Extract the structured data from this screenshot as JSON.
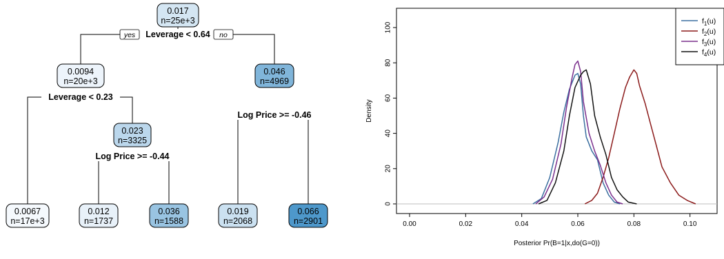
{
  "chart_data": [
    {
      "type": "tree",
      "nodes": [
        {
          "id": "root",
          "value": "0.017",
          "n": "n=25e+3",
          "shade": 0.2
        },
        {
          "id": "left",
          "value": "0.0094",
          "n": "n=20e+3",
          "shade": 0.05
        },
        {
          "id": "right",
          "value": "0.046",
          "n": "n=4969",
          "shade": 0.7
        },
        {
          "id": "leaf1",
          "value": "0.0067",
          "n": "n=17e+3",
          "shade": 0.0
        },
        {
          "id": "mid",
          "value": "0.023",
          "n": "n=3325",
          "shade": 0.35
        },
        {
          "id": "leaf2",
          "value": "0.012",
          "n": "n=1737",
          "shade": 0.08
        },
        {
          "id": "leaf3",
          "value": "0.036",
          "n": "n=1588",
          "shade": 0.55
        },
        {
          "id": "leaf4",
          "value": "0.019",
          "n": "n=2068",
          "shade": 0.25
        },
        {
          "id": "leaf5",
          "value": "0.066",
          "n": "n=2901",
          "shade": 1.0
        }
      ],
      "splits": [
        {
          "id": "s-root",
          "label": "Leverage < 0.64",
          "yes": "yes",
          "no": "no"
        },
        {
          "id": "s-left",
          "label": "Leverage < 0.23"
        },
        {
          "id": "s-right",
          "label": "Log Price >= -0.46"
        },
        {
          "id": "s-mid",
          "label": "Log Price >= -0.44"
        }
      ]
    },
    {
      "type": "line",
      "xlabel": "Posterior  Pr(B=1|x,do(G=0))",
      "ylabel": "Density",
      "xlim": [
        0.0,
        0.105
      ],
      "ylim": [
        0,
        100
      ],
      "xticks": [
        "0.00",
        "0.02",
        "0.04",
        "0.06",
        "0.08",
        "0.10"
      ],
      "yticks": [
        "0",
        "20",
        "40",
        "60",
        "80",
        "100"
      ],
      "legend_position": "top-right",
      "series": [
        {
          "name": "f",
          "sub": "1",
          "suffix": "(u)",
          "color": "#3b6fa0",
          "x": [
            0.044,
            0.047,
            0.05,
            0.053,
            0.055,
            0.057,
            0.059,
            0.06,
            0.061,
            0.062,
            0.063,
            0.065,
            0.067,
            0.069,
            0.071,
            0.073,
            0.075
          ],
          "y": [
            0,
            3,
            15,
            35,
            52,
            65,
            73,
            74,
            68,
            50,
            38,
            30,
            25,
            12,
            5,
            1,
            0
          ]
        },
        {
          "name": "f",
          "sub": "2",
          "suffix": "(u)",
          "color": "#8b1a1a",
          "x": [
            0.0625,
            0.065,
            0.067,
            0.069,
            0.071,
            0.073,
            0.075,
            0.077,
            0.0785,
            0.08,
            0.081,
            0.082,
            0.084,
            0.086,
            0.088,
            0.09,
            0.093,
            0.096,
            0.099,
            0.102
          ],
          "y": [
            0,
            2,
            6,
            15,
            26,
            40,
            54,
            66,
            72,
            76,
            74,
            67,
            57,
            45,
            33,
            21,
            12,
            5,
            2,
            0
          ]
        },
        {
          "name": "f",
          "sub": "3",
          "suffix": "(u)",
          "color": "#7a2e8c",
          "x": [
            0.045,
            0.048,
            0.051,
            0.054,
            0.056,
            0.058,
            0.059,
            0.06,
            0.061,
            0.062,
            0.064,
            0.066,
            0.068,
            0.07,
            0.072,
            0.074,
            0.076
          ],
          "y": [
            0,
            4,
            14,
            34,
            55,
            72,
            79,
            81,
            75,
            58,
            40,
            30,
            22,
            12,
            5,
            1,
            0
          ]
        },
        {
          "name": "f",
          "sub": "4",
          "suffix": "(u)",
          "color": "#111111",
          "x": [
            0.046,
            0.049,
            0.052,
            0.055,
            0.057,
            0.059,
            0.061,
            0.062,
            0.063,
            0.0645,
            0.066,
            0.068,
            0.07,
            0.072,
            0.074,
            0.076,
            0.078,
            0.081
          ],
          "y": [
            0,
            2,
            12,
            30,
            50,
            66,
            73,
            75,
            76,
            68,
            50,
            38,
            28,
            15,
            8,
            4,
            1,
            0
          ]
        }
      ]
    }
  ]
}
